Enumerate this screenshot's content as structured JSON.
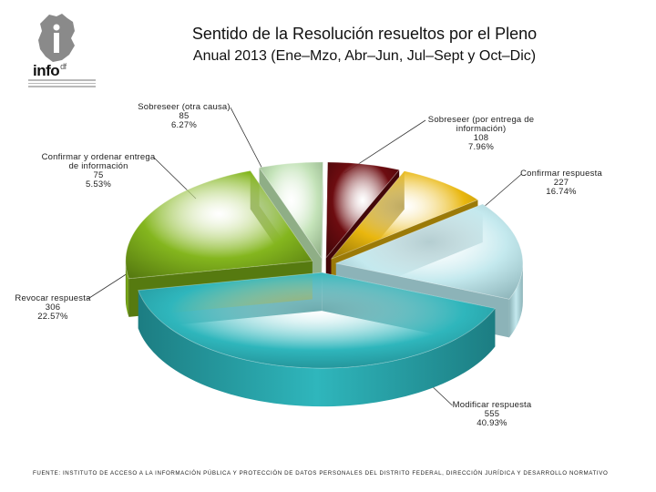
{
  "header": {
    "title": "Sentido de la Resolución resueltos por el Pleno",
    "subtitle": "Anual 2013 (Ene–Mzo, Abr–Jun, Jul–Sept y Oct–Dic)"
  },
  "logo": {
    "word": "info",
    "suffix": "df",
    "icon": "infodf-logo-icon"
  },
  "footer": {
    "source": "FUENTE: INSTITUTO DE ACCESO A LA INFORMACIÓN PÚBLICA Y PROTECCIÓN DE DATOS PERSONALES DEL DISTRITO FEDERAL, DIRECCIÓN JURÍDICA Y DESARROLLO NORMATIVO"
  },
  "chart_data": {
    "type": "pie",
    "style": "3d-exploded",
    "title": "Sentido de la Resolución resueltos por el Pleno",
    "subtitle": "Anual 2013 (Ene–Mzo, Abr–Jun, Jul–Sept y Oct–Dic)",
    "legend": "none",
    "slices": [
      {
        "label": "Modificar respuesta",
        "value": 555,
        "percent": "40.93%",
        "color": "#2fb6bc",
        "dark": "#1c7d82"
      },
      {
        "label": "Revocar respuesta",
        "value": 306,
        "percent": "22.57%",
        "color": "#84b61e",
        "dark": "#567a10"
      },
      {
        "label": "Confirmar y ordenar entrega de información",
        "value": 75,
        "percent": "5.53%",
        "color": "#c4e3b9",
        "dark": "#8fae86"
      },
      {
        "label": "Sobreseer (otra causa)",
        "value": 85,
        "percent": "6.27%",
        "color": "#6d0c10",
        "dark": "#430709"
      },
      {
        "label": "Sobreseer (por entrega de información)",
        "value": 108,
        "percent": "7.96%",
        "color": "#e9b70e",
        "dark": "#9b7a08"
      },
      {
        "label": "Confirmar respuesta",
        "value": 227,
        "percent": "16.74%",
        "color": "#c4e9ee",
        "dark": "#8cb3b8"
      }
    ]
  }
}
